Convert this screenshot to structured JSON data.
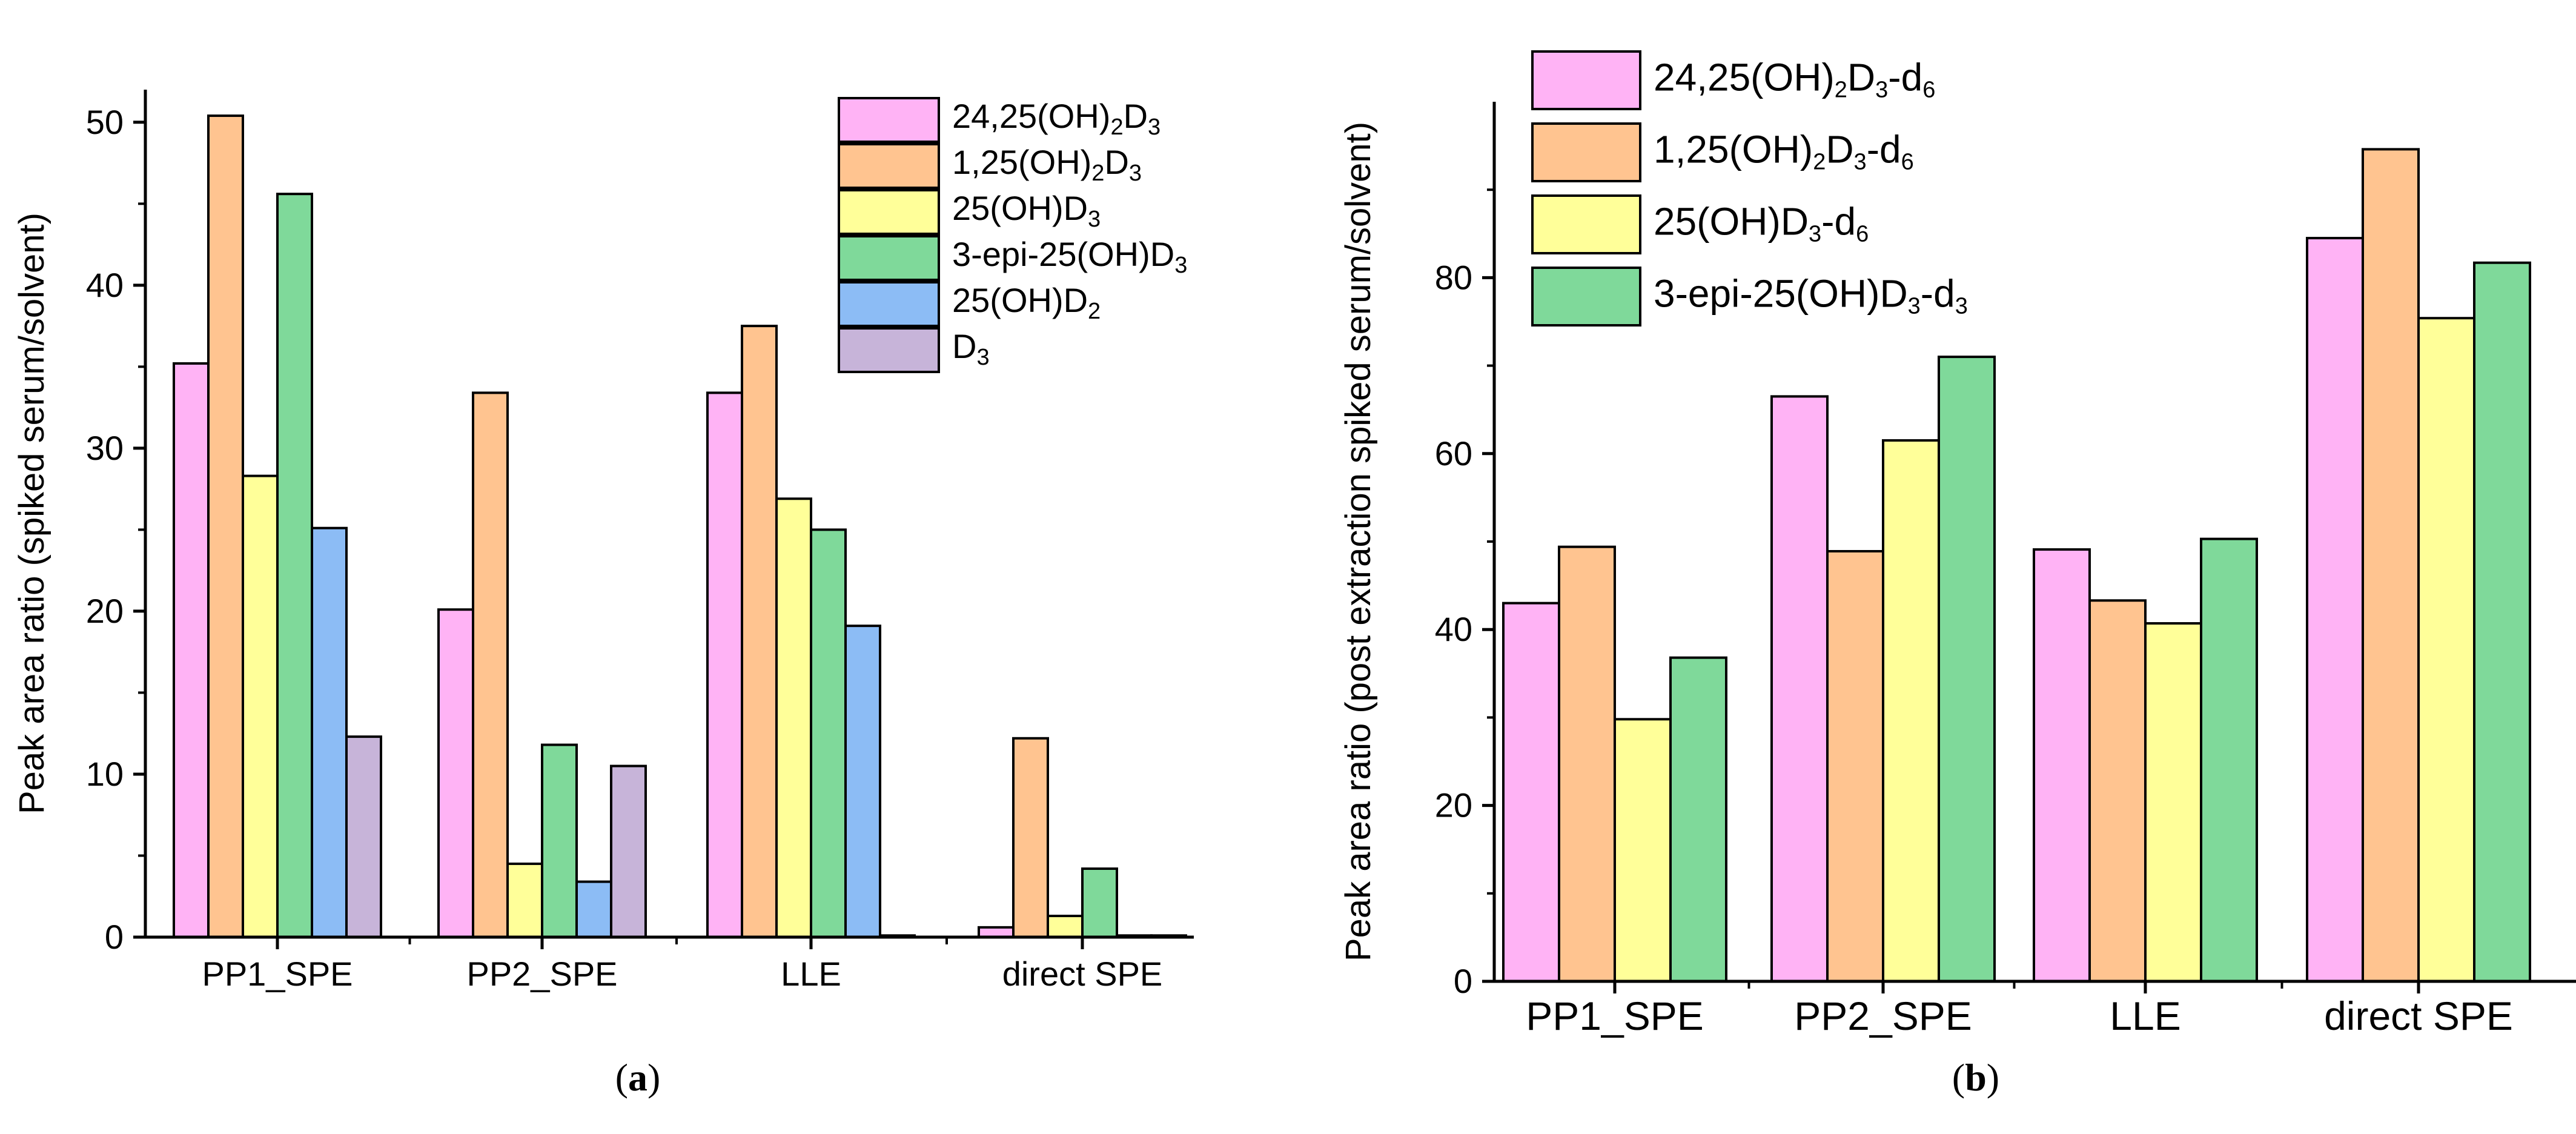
{
  "panels": [
    {
      "chart_data": {
        "type": "bar",
        "caption_letter": "a",
        "caption_prefix": "(",
        "caption_suffix": ")",
        "ylabel": "Peak area ratio (spiked serum/solvent)",
        "xlabel": "",
        "ylim": [
          0,
          52
        ],
        "yticks": [
          0,
          10,
          20,
          30,
          40,
          50
        ],
        "categories": [
          "PP1_SPE",
          "PP2_SPE",
          "LLE",
          "direct SPE"
        ],
        "legend_position": "top-right",
        "series": [
          {
            "name": "24,25(OH)2D3",
            "label_parts": [
              [
                "24,25(OH)",
                ""
              ],
              [
                "2",
                "sub"
              ],
              [
                "D",
                ""
              ],
              [
                "3",
                "sub"
              ]
            ],
            "color": "#FFB3F5",
            "values": [
              35.2,
              20.1,
              33.4,
              0.6
            ]
          },
          {
            "name": "1,25(OH)2D3",
            "label_parts": [
              [
                "1,25(OH)",
                ""
              ],
              [
                "2",
                "sub"
              ],
              [
                "D",
                ""
              ],
              [
                "3",
                "sub"
              ]
            ],
            "color": "#FFC490",
            "values": [
              50.4,
              33.4,
              37.5,
              12.2
            ]
          },
          {
            "name": "25(OH)D3",
            "label_parts": [
              [
                "25(OH)D",
                ""
              ],
              [
                "3",
                "sub"
              ]
            ],
            "color": "#FFFF99",
            "values": [
              28.3,
              4.5,
              26.9,
              1.3
            ]
          },
          {
            "name": "3-epi-25(OH)D3",
            "label_parts": [
              [
                "3-epi-25(OH)D",
                ""
              ],
              [
                "3",
                "sub"
              ]
            ],
            "color": "#7FD99A",
            "values": [
              45.6,
              11.8,
              25.0,
              4.2
            ]
          },
          {
            "name": "25(OH)D2",
            "label_parts": [
              [
                "25(OH)D",
                ""
              ],
              [
                "2",
                "sub"
              ]
            ],
            "color": "#8CBCF5",
            "values": [
              25.1,
              3.4,
              19.1,
              0.1
            ]
          },
          {
            "name": "D3",
            "label_parts": [
              [
                "D",
                ""
              ],
              [
                "3",
                "sub"
              ]
            ],
            "color": "#C7B4D9",
            "values": [
              12.3,
              10.5,
              0.1,
              0.1
            ]
          }
        ]
      }
    },
    {
      "chart_data": {
        "type": "bar",
        "caption_letter": "b",
        "caption_prefix": "(",
        "caption_suffix": ")",
        "ylabel": "Peak area ratio (post extraction spiked serum/solvent)",
        "xlabel": "",
        "ylim": [
          0,
          100
        ],
        "yticks": [
          0,
          20,
          40,
          60,
          80
        ],
        "categories": [
          "PP1_SPE",
          "PP2_SPE",
          "LLE",
          "direct SPE"
        ],
        "legend_position": "top-left",
        "series": [
          {
            "name": "24,25(OH)2D3-d6",
            "label_parts": [
              [
                "24,25(OH)",
                ""
              ],
              [
                "2",
                "sub"
              ],
              [
                "D",
                ""
              ],
              [
                "3",
                "sub"
              ],
              [
                "-d",
                ""
              ],
              [
                "6",
                "sub"
              ]
            ],
            "color": "#FFB3F5",
            "values": [
              43.0,
              66.5,
              49.1,
              84.5
            ]
          },
          {
            "name": "1,25(OH)2D3-d6",
            "label_parts": [
              [
                "1,25(OH)",
                ""
              ],
              [
                "2",
                "sub"
              ],
              [
                "D",
                ""
              ],
              [
                "3",
                "sub"
              ],
              [
                "-d",
                ""
              ],
              [
                "6",
                "sub"
              ]
            ],
            "color": "#FFC490",
            "values": [
              49.4,
              48.9,
              43.3,
              94.6
            ]
          },
          {
            "name": "25(OH)D3-d6",
            "label_parts": [
              [
                "25(OH)D",
                ""
              ],
              [
                "3",
                "sub"
              ],
              [
                "-d",
                ""
              ],
              [
                "6",
                "sub"
              ]
            ],
            "color": "#FFFF99",
            "values": [
              29.8,
              61.5,
              40.7,
              75.4
            ]
          },
          {
            "name": "3-epi-25(OH)D3-d3",
            "label_parts": [
              [
                "3-epi-25(OH)D",
                ""
              ],
              [
                "3",
                "sub"
              ],
              [
                "-d",
                ""
              ],
              [
                "3",
                "sub"
              ]
            ],
            "color": "#7FD99A",
            "values": [
              36.8,
              71.0,
              50.3,
              81.7
            ]
          }
        ]
      }
    }
  ]
}
